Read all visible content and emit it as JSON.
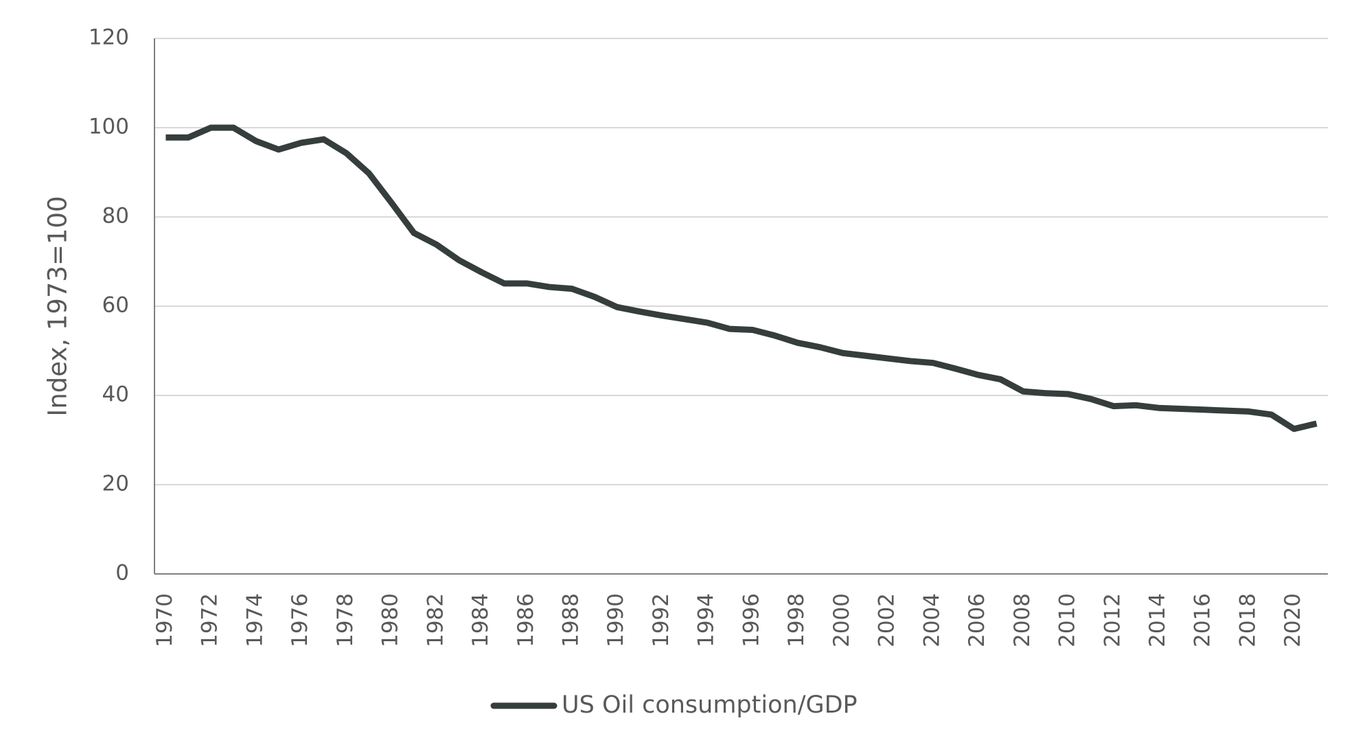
{
  "chart_data": {
    "type": "line",
    "y_label": "Index, 1973=100",
    "categories": [
      "1970",
      null,
      "1972",
      null,
      "1974",
      null,
      "1976",
      null,
      "1978",
      null,
      "1980",
      null,
      "1982",
      null,
      "1984",
      null,
      "1986",
      null,
      "1988",
      null,
      "1990",
      null,
      "1992",
      null,
      "1994",
      null,
      "1996",
      null,
      "1998",
      null,
      "2000",
      null,
      "2002",
      null,
      "2004",
      null,
      "2006",
      null,
      "2008",
      null,
      "2010",
      null,
      "2012",
      null,
      "2014",
      null,
      "2016",
      null,
      "2018",
      null,
      "2020",
      null
    ],
    "series": [
      {
        "name": "US Oil consumption/GDP",
        "color": "#363d3d",
        "values": [
          97.8,
          97.8,
          100,
          100,
          97.0,
          95.1,
          96.6,
          97.4,
          94.3,
          89.8,
          83.2,
          76.4,
          73.8,
          70.3,
          67.6,
          65.1,
          65.1,
          64.3,
          63.9,
          62.1,
          59.8,
          58.8,
          57.9,
          57.1,
          56.3,
          54.9,
          54.7,
          53.4,
          51.8,
          50.8,
          49.5,
          48.9,
          48.3,
          47.7,
          47.3,
          46.0,
          44.6,
          43.6,
          40.9,
          40.5,
          40.3,
          39.2,
          37.6,
          37.8,
          37.2,
          37.0,
          36.8,
          36.6,
          36.4,
          35.7,
          32.5,
          33.7
        ]
      }
    ],
    "ylim": [
      0,
      120
    ],
    "yticks": [
      0,
      20,
      40,
      60,
      80,
      100,
      120
    ],
    "grid": true,
    "legend": "bottom"
  }
}
